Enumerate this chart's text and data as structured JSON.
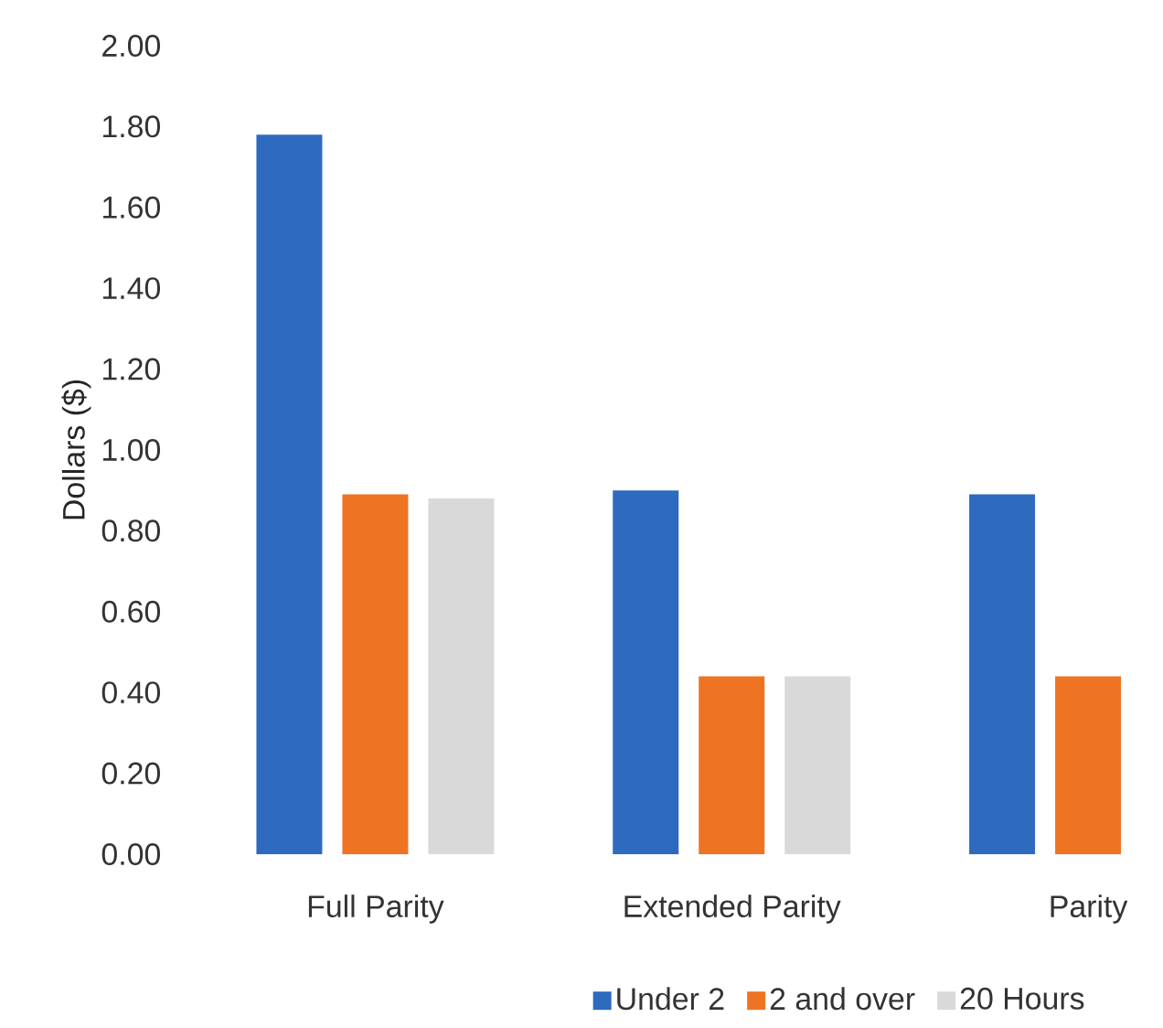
{
  "chart_data": {
    "type": "bar",
    "ylabel": "Dollars ($)",
    "categories": [
      "Full Parity",
      "Extended Parity",
      "Parity"
    ],
    "series": [
      {
        "name": "Under 2",
        "color": "#2e6bbf",
        "values": [
          1.78,
          0.9,
          0.89
        ]
      },
      {
        "name": "2 and over",
        "color": "#ee7424",
        "values": [
          0.89,
          0.44,
          0.44
        ]
      },
      {
        "name": "20 Hours",
        "color": "#d9d9d9",
        "values": [
          0.88,
          0.44,
          null
        ]
      }
    ],
    "ylim": [
      0,
      2
    ],
    "yticks": [
      {
        "value": 0,
        "label": "0.00"
      },
      {
        "value": 0.2,
        "label": "0.20"
      },
      {
        "value": 0.4,
        "label": "0.40"
      },
      {
        "value": 0.6,
        "label": "0.60"
      },
      {
        "value": 0.8,
        "label": "0.80"
      },
      {
        "value": 1,
        "label": "1.00"
      },
      {
        "value": 1.2,
        "label": "1.20"
      },
      {
        "value": 1.4,
        "label": "1.40"
      },
      {
        "value": 1.6,
        "label": "1.60"
      },
      {
        "value": 1.8,
        "label": "1.80"
      },
      {
        "value": 2,
        "label": "2.00"
      }
    ],
    "grid": false,
    "legend": "bottom"
  }
}
